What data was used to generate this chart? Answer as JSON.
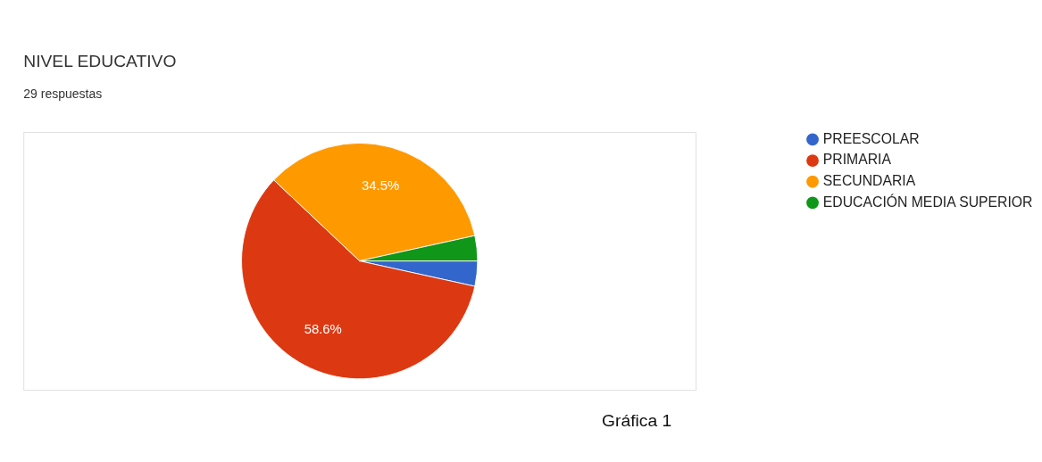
{
  "chart_data": {
    "type": "pie",
    "title": "NIVEL EDUCATIVO",
    "subtitle": "29 respuestas",
    "categories": [
      "PREESCOLAR",
      "PRIMARIA",
      "SECUNDARIA",
      "EDUCACIÓN MEDIA SUPERIOR"
    ],
    "values": [
      3.45,
      58.6,
      34.5,
      3.45
    ],
    "colors": [
      "#3366cc",
      "#dc3912",
      "#ff9900",
      "#109618"
    ],
    "value_labels": [
      null,
      "58.6%",
      "34.5%",
      null
    ],
    "legend": "top right",
    "annotations": [
      "Gráfica 1"
    ]
  }
}
